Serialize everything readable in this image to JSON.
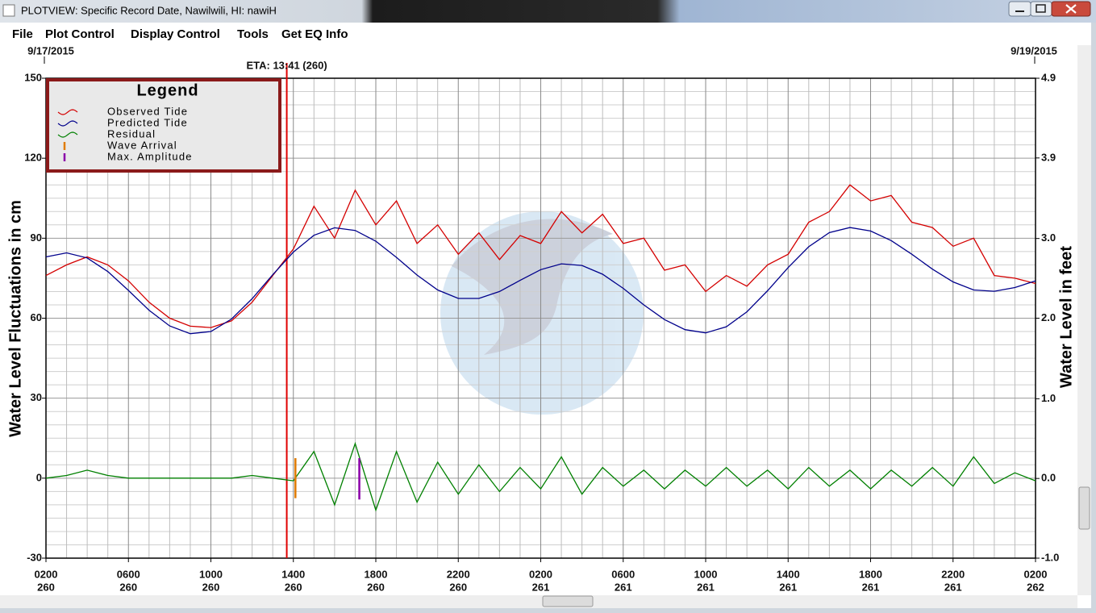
{
  "window": {
    "title": "PLOTVIEW: Specific Record Date, Nawilwili, HI: nawiH",
    "menu": [
      "File",
      "Plot Control",
      "Display Control",
      "Tools",
      "Get EQ Info"
    ]
  },
  "chart_data": {
    "type": "line",
    "date_left": "9/17/2015",
    "date_right": "9/19/2015",
    "ylabel": "Water Level Fluctuations in cm",
    "y2label": "Water Level in feet",
    "legend_title": "Legend",
    "legend": "upper left",
    "grid": true,
    "x": [
      0,
      1,
      2,
      3,
      4,
      5,
      6,
      7,
      8,
      9,
      10,
      11,
      12,
      13,
      14,
      15,
      16,
      17,
      18,
      19,
      20,
      21,
      22,
      23,
      24,
      25,
      26,
      27,
      28,
      29,
      30,
      31,
      32,
      33,
      34,
      35,
      36,
      37,
      38,
      39,
      40,
      41,
      42,
      43,
      44,
      45,
      46,
      47,
      48
    ],
    "xlim": [
      0,
      48
    ],
    "xticks": [
      {
        "value": 0,
        "label": "0200"
      },
      {
        "value": 4,
        "label": "0600"
      },
      {
        "value": 8,
        "label": "1000"
      },
      {
        "value": 12,
        "label": "1400"
      },
      {
        "value": 16,
        "label": "1800"
      },
      {
        "value": 20,
        "label": "2200"
      },
      {
        "value": 24,
        "label": "0200"
      },
      {
        "value": 28,
        "label": "0600"
      },
      {
        "value": 32,
        "label": "1000"
      },
      {
        "value": 36,
        "label": "1400"
      },
      {
        "value": 40,
        "label": "1800"
      },
      {
        "value": 44,
        "label": "2200"
      },
      {
        "value": 48,
        "label": "0200"
      }
    ],
    "xtick_days": [
      "260",
      "260",
      "260",
      "260",
      "260",
      "260",
      "261",
      "261",
      "261",
      "261",
      "261",
      "261",
      "262"
    ],
    "ylim": [
      -30,
      150
    ],
    "yticks": [
      -30,
      0,
      30,
      60,
      90,
      120,
      150
    ],
    "y2lim": [
      -0.98,
      4.92
    ],
    "y2ticks": [
      {
        "value": -0.98,
        "label": "-1.0"
      },
      {
        "value": 0,
        "label": "0.0"
      },
      {
        "value": 0.98,
        "label": "1.0"
      },
      {
        "value": 1.97,
        "label": "2.0"
      },
      {
        "value": 2.95,
        "label": "3.0"
      },
      {
        "value": 3.94,
        "label": "3.9"
      },
      {
        "value": 4.92,
        "label": "4.9"
      }
    ],
    "series": [
      {
        "name": "Observed Tide",
        "color": "#d40000",
        "values": [
          76,
          80,
          83,
          80,
          74,
          66,
          60,
          57,
          56.5,
          59,
          66,
          76,
          86,
          102,
          90,
          108,
          95,
          104,
          88,
          95,
          84,
          92,
          82,
          91,
          88,
          100,
          92,
          99,
          88,
          90,
          78,
          80,
          70,
          76,
          72,
          80,
          84,
          96,
          100,
          110,
          104,
          106,
          96,
          94,
          87,
          90,
          76,
          75,
          73
        ]
      },
      {
        "name": "Predicted Tide",
        "color": "#00008b",
        "values": [
          83,
          84.5,
          82.6,
          77.5,
          70.4,
          63,
          57.1,
          54.2,
          55,
          59.7,
          67.3,
          76.3,
          84.8,
          91.1,
          93.9,
          92.9,
          88.9,
          82.8,
          76.2,
          70.6,
          67.4,
          67.4,
          70,
          74.2,
          78.2,
          80.4,
          79.8,
          76.5,
          71.2,
          65,
          59.5,
          55.7,
          54.5,
          56.8,
          62.4,
          70.3,
          79,
          86.8,
          92.1,
          94,
          92.7,
          89.1,
          84,
          78.4,
          73.6,
          70.6,
          70.1,
          71.5,
          74
        ]
      },
      {
        "name": "Residual",
        "color": "#008000",
        "values": [
          0,
          1,
          3,
          1,
          0,
          0,
          0,
          0,
          0,
          0,
          1,
          0,
          -1,
          10,
          -10,
          13,
          -12,
          10,
          -9,
          6,
          -6,
          5,
          -5,
          4,
          -4,
          8,
          -6,
          4,
          -3,
          3,
          -4,
          3,
          -3,
          4,
          -3,
          3,
          -4,
          4,
          -3,
          3,
          -4,
          3,
          -3,
          4,
          -3,
          8,
          -2,
          2,
          -1
        ]
      }
    ],
    "markers": [
      {
        "name": "Wave Arrival",
        "color": "#e07b00",
        "x": 12.1,
        "range": [
          -7.5,
          7.5
        ]
      },
      {
        "name": "Max. Amplitude",
        "color": "#8a00a8",
        "x": 15.2,
        "range": [
          -8,
          7.5
        ]
      }
    ],
    "eta": {
      "label": "ETA: 13:41 (260)",
      "x": 11.68,
      "color": "#e00000"
    }
  }
}
